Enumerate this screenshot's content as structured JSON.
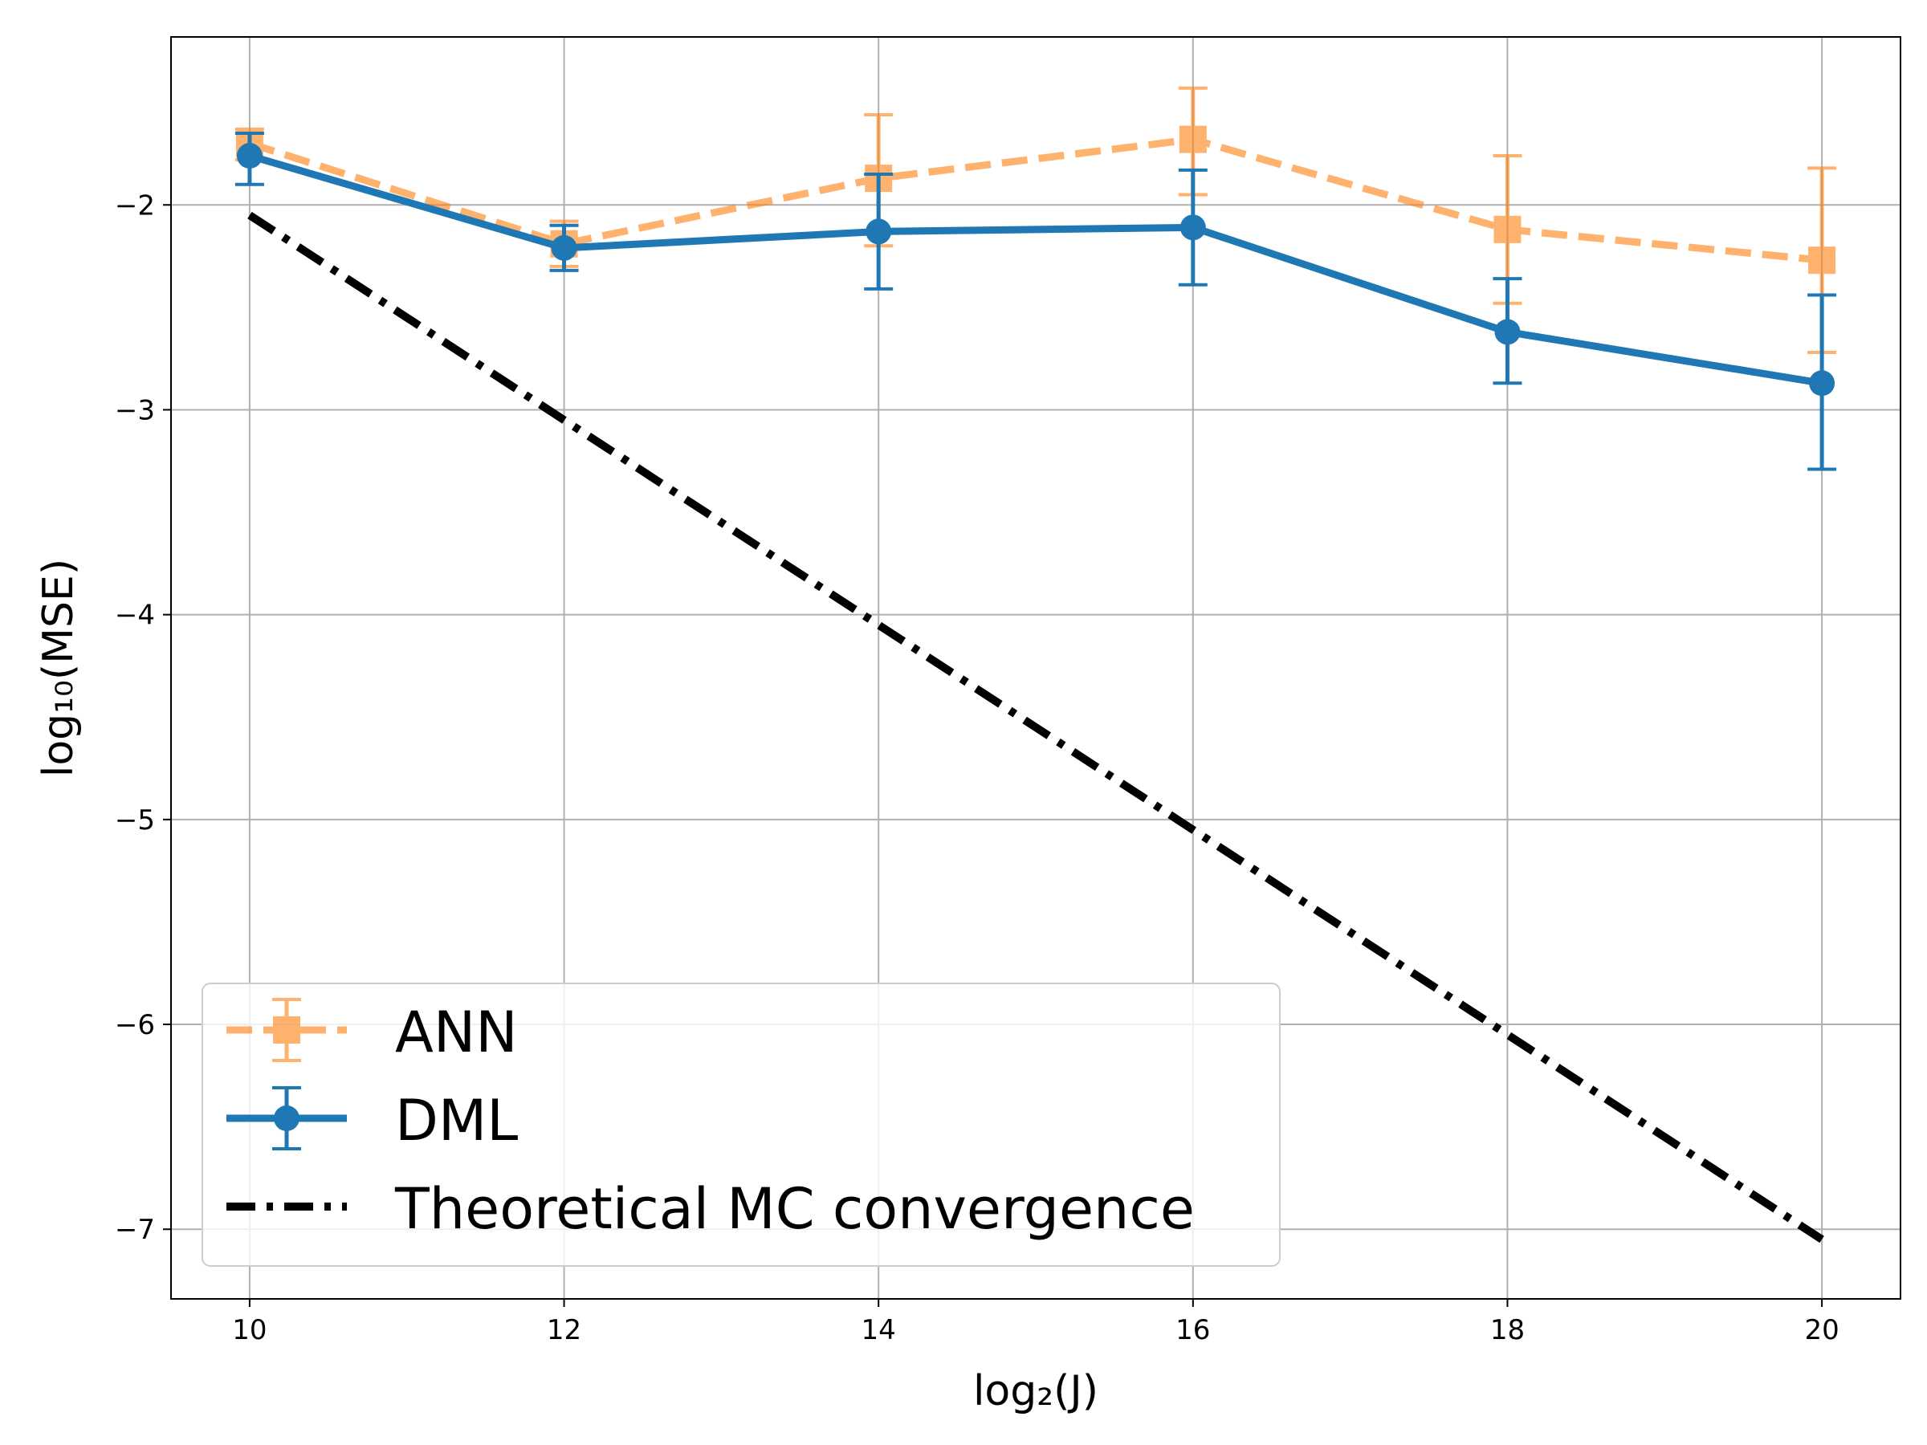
{
  "chart_data": {
    "type": "line",
    "title": "",
    "xlabel": "log₂(J)",
    "ylabel": "log₁₀(MSE)",
    "xlim": [
      9.5,
      20.5
    ],
    "ylim": [
      -7.34,
      -1.18
    ],
    "xticks": [
      10,
      12,
      14,
      16,
      18,
      20
    ],
    "xtick_labels": [
      "10",
      "12",
      "14",
      "16",
      "18",
      "20"
    ],
    "yticks": [
      -7,
      -6,
      -5,
      -4,
      -3,
      -2
    ],
    "ytick_labels": [
      "−7",
      "−6",
      "−5",
      "−4",
      "−3",
      "−2"
    ],
    "grid": true,
    "legend_position": "lower-left",
    "series": [
      {
        "name": "ANN",
        "color": "#ff7f0e",
        "style": "dashed",
        "marker": "square",
        "alpha": 0.6,
        "x": [
          10,
          12,
          14,
          16,
          18,
          20
        ],
        "y": [
          -1.7,
          -2.19,
          -1.87,
          -1.68,
          -2.12,
          -2.27
        ],
        "err_low": [
          -1.78,
          -2.3,
          -2.2,
          -1.95,
          -2.48,
          -2.72
        ],
        "err_high": [
          -1.63,
          -2.08,
          -1.56,
          -1.43,
          -1.76,
          -1.82
        ]
      },
      {
        "name": "DML",
        "color": "#1f77b4",
        "style": "solid",
        "marker": "circle",
        "alpha": 1.0,
        "x": [
          10,
          12,
          14,
          16,
          18,
          20
        ],
        "y": [
          -1.76,
          -2.21,
          -2.13,
          -2.11,
          -2.62,
          -2.87
        ],
        "err_low": [
          -1.9,
          -2.32,
          -2.41,
          -2.39,
          -2.87,
          -3.29
        ],
        "err_high": [
          -1.65,
          -2.1,
          -1.85,
          -1.83,
          -2.36,
          -2.44
        ]
      },
      {
        "name": "Theoretical MC convergence",
        "color": "#000000",
        "style": "dashdot",
        "marker": "none",
        "alpha": 1.0,
        "x": [
          10,
          20
        ],
        "y": [
          -2.05,
          -7.05
        ]
      }
    ]
  }
}
